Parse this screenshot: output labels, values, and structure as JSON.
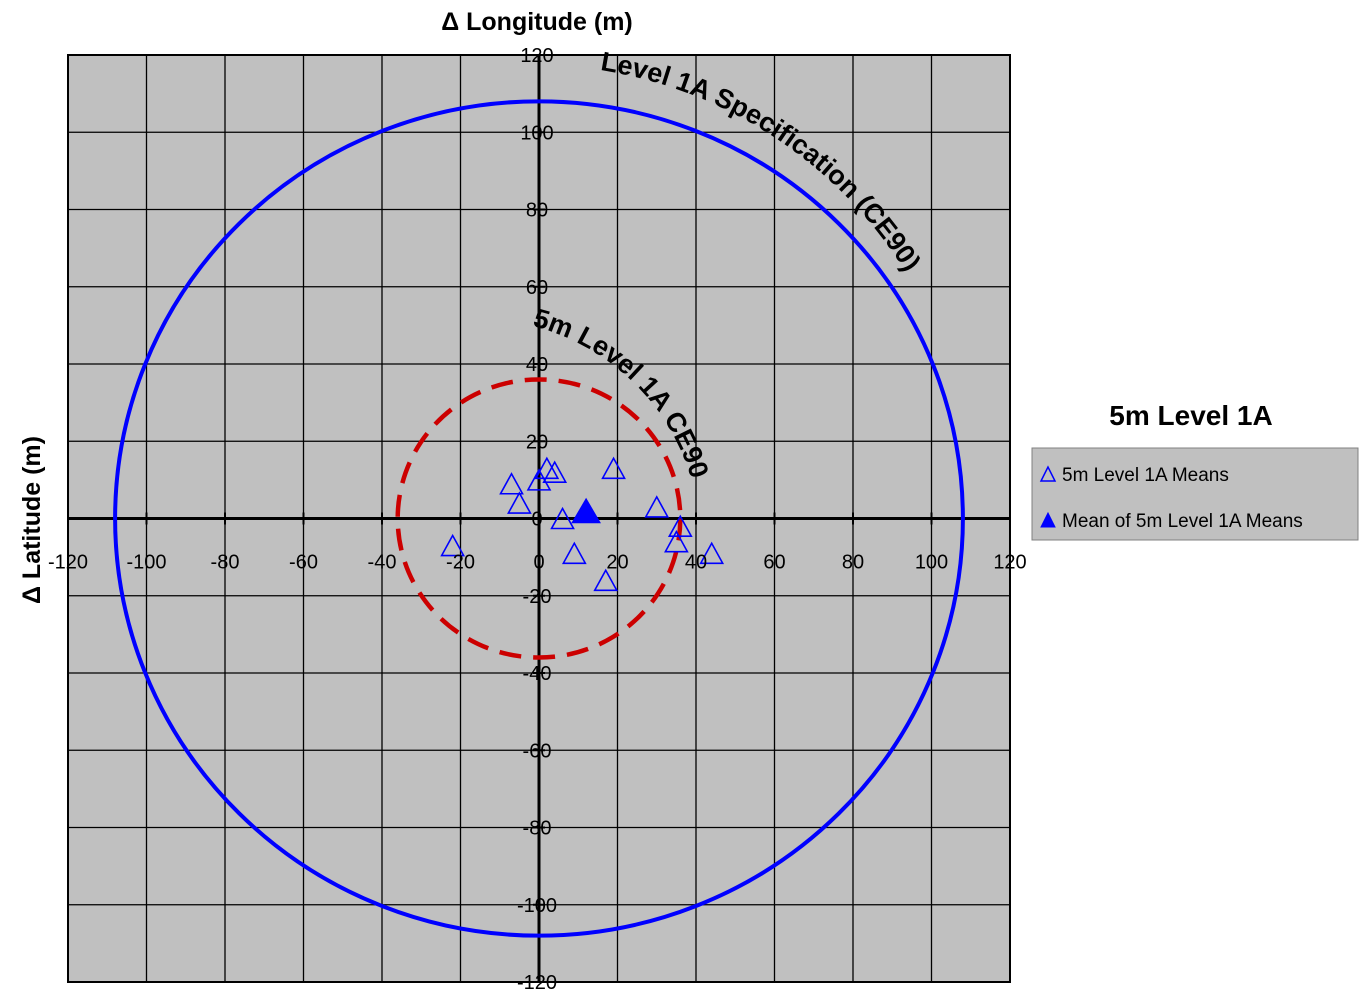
{
  "chart_data": {
    "type": "scatter",
    "title": "",
    "xlabel": "Δ Longitude (m)",
    "ylabel": "Δ Latitude (m)",
    "xlim": [
      -120,
      120
    ],
    "ylim": [
      -120,
      120
    ],
    "x_ticks": [
      -120,
      -100,
      -80,
      -60,
      -40,
      -20,
      0,
      20,
      40,
      60,
      80,
      100,
      120
    ],
    "y_ticks": [
      -120,
      -100,
      -80,
      -60,
      -40,
      -20,
      0,
      20,
      40,
      60,
      80,
      100,
      120
    ],
    "grid": true,
    "background_color": "#c0c0c0",
    "legend": {
      "title": "5m Level 1A",
      "placement": "right",
      "entries": [
        "5m Level 1A Means",
        "Mean of 5m Level 1A Means"
      ]
    },
    "circles": [
      {
        "name": "Level 1A Specification (CE90)",
        "label": "Level 1A Specification (CE90)",
        "radius": 108,
        "color": "#0000ff",
        "style": "solid"
      },
      {
        "name": "5m Level 1A CE90",
        "label": "5m Level 1A CE90",
        "radius": 36,
        "color": "#cc0000",
        "style": "dashed"
      }
    ],
    "series": [
      {
        "name": "5m Level 1A Means",
        "marker": "open-triangle",
        "color": "#0000ff",
        "points": [
          {
            "x": 2,
            "y": 13
          },
          {
            "x": 4,
            "y": 12
          },
          {
            "x": 0,
            "y": 10
          },
          {
            "x": -7,
            "y": 9
          },
          {
            "x": -5,
            "y": 4
          },
          {
            "x": 19,
            "y": 13
          },
          {
            "x": 30,
            "y": 3
          },
          {
            "x": 6,
            "y": 0
          },
          {
            "x": 36,
            "y": -2
          },
          {
            "x": 35,
            "y": -6
          },
          {
            "x": -22,
            "y": -7
          },
          {
            "x": 9,
            "y": -9
          },
          {
            "x": 44,
            "y": -9
          },
          {
            "x": 17,
            "y": -16
          }
        ]
      },
      {
        "name": "Mean of 5m Level 1A Means",
        "marker": "filled-triangle",
        "color": "#0000ff",
        "points": [
          {
            "x": 12,
            "y": 2
          }
        ]
      }
    ]
  }
}
